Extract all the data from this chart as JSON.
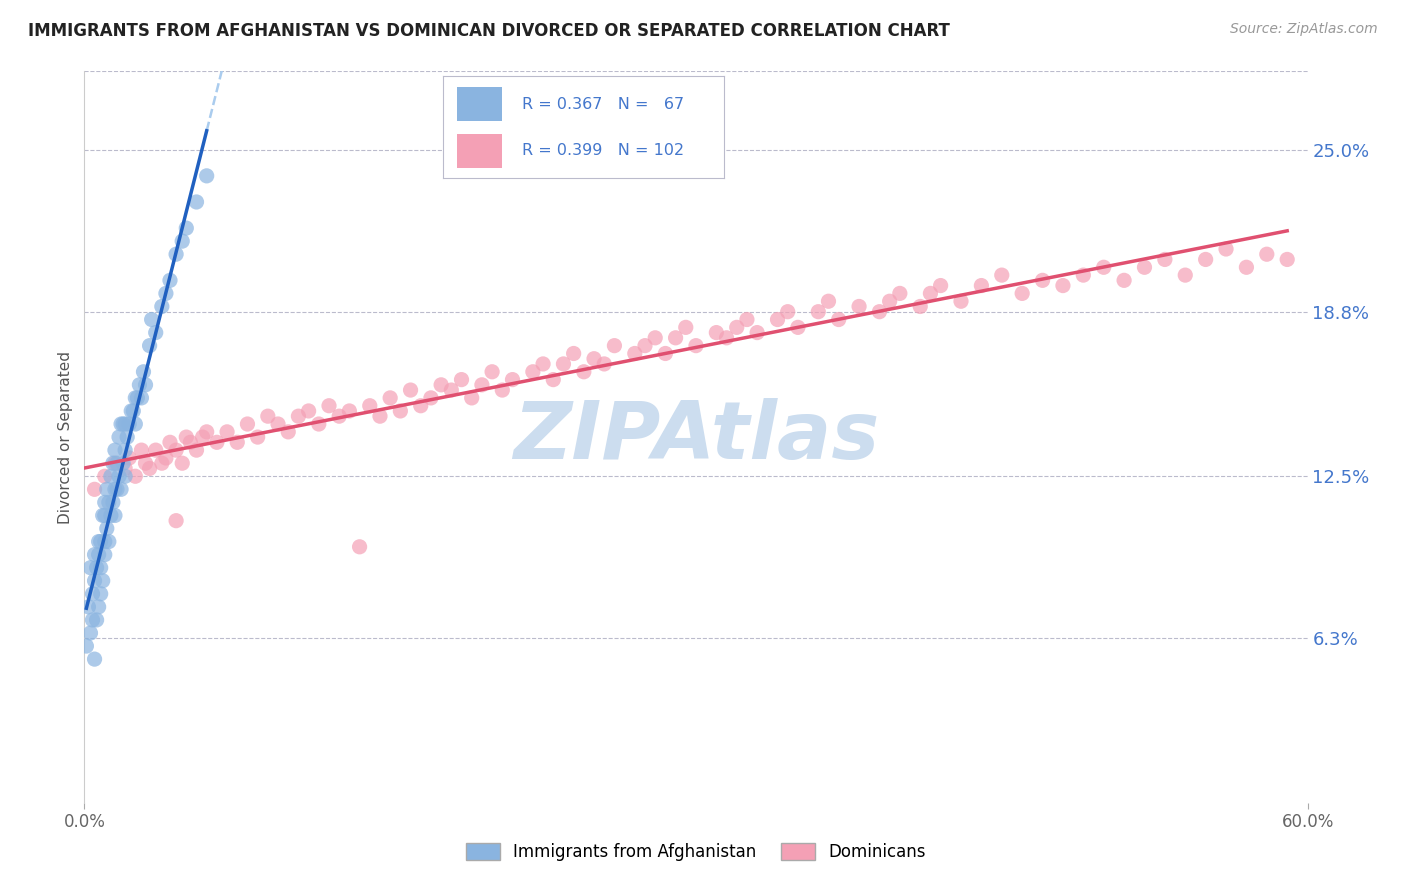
{
  "title": "IMMIGRANTS FROM AFGHANISTAN VS DOMINICAN DIVORCED OR SEPARATED CORRELATION CHART",
  "source_text": "Source: ZipAtlas.com",
  "ylabel": "Divorced or Separated",
  "right_ytick_labels": [
    "25.0%",
    "18.8%",
    "12.5%",
    "6.3%"
  ],
  "right_ytick_values": [
    0.25,
    0.188,
    0.125,
    0.063
  ],
  "xlim": [
    0.0,
    0.6
  ],
  "ylim": [
    0.0,
    0.28
  ],
  "blue_color": "#8ab4e0",
  "pink_color": "#f4a0b5",
  "blue_line_color": "#2060c0",
  "pink_line_color": "#e05070",
  "dashed_line_color": "#aaccee",
  "legend_text_color": "#4477cc",
  "title_color": "#222222",
  "background_color": "#ffffff",
  "grid_color": "#bbbbcc",
  "right_label_color": "#4477cc",
  "watermark_color": "#ccddef",
  "afghanistan_x": [
    0.001,
    0.002,
    0.003,
    0.003,
    0.004,
    0.004,
    0.005,
    0.005,
    0.005,
    0.006,
    0.006,
    0.007,
    0.007,
    0.007,
    0.008,
    0.008,
    0.008,
    0.009,
    0.009,
    0.01,
    0.01,
    0.01,
    0.01,
    0.011,
    0.011,
    0.012,
    0.012,
    0.013,
    0.013,
    0.014,
    0.014,
    0.015,
    0.015,
    0.015,
    0.016,
    0.016,
    0.017,
    0.017,
    0.018,
    0.018,
    0.019,
    0.019,
    0.02,
    0.02,
    0.02,
    0.021,
    0.022,
    0.023,
    0.024,
    0.025,
    0.025,
    0.026,
    0.027,
    0.028,
    0.029,
    0.03,
    0.032,
    0.033,
    0.035,
    0.038,
    0.04,
    0.042,
    0.045,
    0.048,
    0.05,
    0.055,
    0.06
  ],
  "afghanistan_y": [
    0.06,
    0.075,
    0.065,
    0.09,
    0.07,
    0.08,
    0.055,
    0.085,
    0.095,
    0.07,
    0.09,
    0.075,
    0.095,
    0.1,
    0.08,
    0.09,
    0.1,
    0.085,
    0.11,
    0.095,
    0.1,
    0.11,
    0.115,
    0.105,
    0.12,
    0.1,
    0.115,
    0.11,
    0.125,
    0.115,
    0.13,
    0.11,
    0.12,
    0.135,
    0.12,
    0.13,
    0.125,
    0.14,
    0.12,
    0.145,
    0.13,
    0.145,
    0.125,
    0.135,
    0.145,
    0.14,
    0.145,
    0.15,
    0.15,
    0.145,
    0.155,
    0.155,
    0.16,
    0.155,
    0.165,
    0.16,
    0.175,
    0.185,
    0.18,
    0.19,
    0.195,
    0.2,
    0.21,
    0.215,
    0.22,
    0.23,
    0.24
  ],
  "dominican_x": [
    0.005,
    0.01,
    0.015,
    0.02,
    0.022,
    0.025,
    0.028,
    0.03,
    0.032,
    0.035,
    0.038,
    0.04,
    0.042,
    0.045,
    0.048,
    0.05,
    0.052,
    0.055,
    0.058,
    0.06,
    0.065,
    0.07,
    0.075,
    0.08,
    0.085,
    0.09,
    0.095,
    0.1,
    0.105,
    0.11,
    0.115,
    0.12,
    0.125,
    0.13,
    0.14,
    0.145,
    0.15,
    0.155,
    0.16,
    0.165,
    0.17,
    0.175,
    0.18,
    0.185,
    0.19,
    0.195,
    0.2,
    0.205,
    0.21,
    0.22,
    0.225,
    0.23,
    0.235,
    0.24,
    0.245,
    0.25,
    0.255,
    0.26,
    0.27,
    0.275,
    0.28,
    0.285,
    0.29,
    0.295,
    0.3,
    0.31,
    0.315,
    0.32,
    0.325,
    0.33,
    0.34,
    0.345,
    0.35,
    0.36,
    0.365,
    0.37,
    0.38,
    0.39,
    0.395,
    0.4,
    0.41,
    0.415,
    0.42,
    0.43,
    0.44,
    0.45,
    0.46,
    0.47,
    0.48,
    0.49,
    0.5,
    0.51,
    0.52,
    0.53,
    0.54,
    0.55,
    0.56,
    0.57,
    0.58,
    0.59,
    0.045,
    0.135
  ],
  "dominican_y": [
    0.12,
    0.125,
    0.13,
    0.128,
    0.132,
    0.125,
    0.135,
    0.13,
    0.128,
    0.135,
    0.13,
    0.132,
    0.138,
    0.135,
    0.13,
    0.14,
    0.138,
    0.135,
    0.14,
    0.142,
    0.138,
    0.142,
    0.138,
    0.145,
    0.14,
    0.148,
    0.145,
    0.142,
    0.148,
    0.15,
    0.145,
    0.152,
    0.148,
    0.15,
    0.152,
    0.148,
    0.155,
    0.15,
    0.158,
    0.152,
    0.155,
    0.16,
    0.158,
    0.162,
    0.155,
    0.16,
    0.165,
    0.158,
    0.162,
    0.165,
    0.168,
    0.162,
    0.168,
    0.172,
    0.165,
    0.17,
    0.168,
    0.175,
    0.172,
    0.175,
    0.178,
    0.172,
    0.178,
    0.182,
    0.175,
    0.18,
    0.178,
    0.182,
    0.185,
    0.18,
    0.185,
    0.188,
    0.182,
    0.188,
    0.192,
    0.185,
    0.19,
    0.188,
    0.192,
    0.195,
    0.19,
    0.195,
    0.198,
    0.192,
    0.198,
    0.202,
    0.195,
    0.2,
    0.198,
    0.202,
    0.205,
    0.2,
    0.205,
    0.208,
    0.202,
    0.208,
    0.212,
    0.205,
    0.21,
    0.208,
    0.108,
    0.098
  ]
}
